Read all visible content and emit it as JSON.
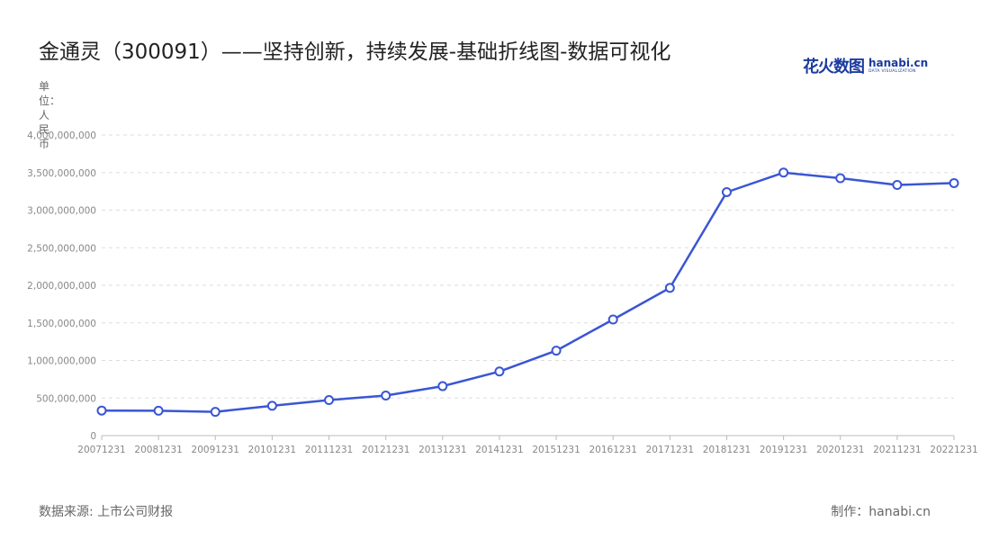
{
  "title": "金通灵（300091）——坚持创新，持续发展-基础折线图-数据可视化",
  "brand": {
    "cn": "花火数图",
    "en": "hanabi.cn",
    "sub": "DATA VISUALIZATION"
  },
  "unit_label": "单位：人民币",
  "footer": {
    "source": "数据来源: 上市公司财报",
    "credit": "制作：hanabi.cn"
  },
  "colors": {
    "line": "#3a56d4",
    "grid": "#dddddd",
    "axis": "#bbbbbb",
    "tick_text": "#888888"
  },
  "chart_data": {
    "type": "line",
    "title": "金通灵（300091）——坚持创新，持续发展-基础折线图-数据可视化",
    "ylabel": "单位：人民币",
    "categories": [
      "20071231",
      "20081231",
      "20091231",
      "20101231",
      "20111231",
      "20121231",
      "20131231",
      "20141231",
      "20151231",
      "20161231",
      "20171231",
      "20181231",
      "20191231",
      "20201231",
      "20211231",
      "20221231"
    ],
    "values": [
      333000000,
      331000000,
      316000000,
      397000000,
      473000000,
      533000000,
      658000000,
      853000000,
      1130000000,
      1545000000,
      1965000000,
      3240000000,
      3500000000,
      3425000000,
      3335000000,
      3360000000
    ],
    "ylim": [
      0,
      4000000000
    ],
    "yticks": [
      0,
      500000000,
      1000000000,
      1500000000,
      2000000000,
      2500000000,
      3000000000,
      3500000000,
      4000000000
    ],
    "ytick_labels": [
      "0",
      "500,000,000",
      "1,000,000,000",
      "1,500,000,000",
      "2,000,000,000",
      "2,500,000,000",
      "3,000,000,000",
      "3,500,000,000",
      "4,000,000,000"
    ],
    "grid": true,
    "legend": "none"
  }
}
